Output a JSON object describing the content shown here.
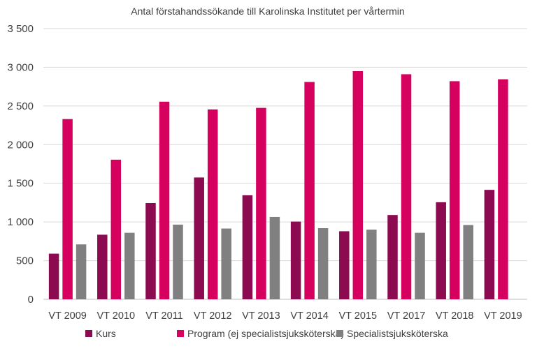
{
  "chart_data": {
    "type": "bar",
    "title": "Antal förstahandssökande till Karolinska Institutet per vårtermin",
    "xlabel": "",
    "ylabel": "",
    "ylim": [
      0,
      3500
    ],
    "yticks": [
      0,
      500,
      1000,
      1500,
      2000,
      2500,
      3000,
      3500
    ],
    "ytick_labels": [
      "0",
      "500",
      "1 000",
      "1 500",
      "2 000",
      "2 500",
      "3 000",
      "3 500"
    ],
    "grid": true,
    "legend_position": "bottom",
    "categories": [
      "VT 2009",
      "VT 2010",
      "VT 2011",
      "VT 2012",
      "VT 2013",
      "VT 2014",
      "VT 2015",
      "VT 2017",
      "VT 2018",
      "VT 2019"
    ],
    "series": [
      {
        "name": "Kurs",
        "color": "#8B0A50",
        "values": [
          590,
          835,
          1245,
          1575,
          1345,
          1005,
          880,
          1090,
          1255,
          1415
        ]
      },
      {
        "name": "Program (ej specialistsjuksköterska)",
        "color": "#D6005F",
        "values": [
          2330,
          1805,
          2555,
          2455,
          2475,
          2810,
          2950,
          2910,
          2820,
          2845
        ]
      },
      {
        "name": "Specialistsjuksköterska",
        "color": "#808080",
        "values": [
          710,
          860,
          965,
          915,
          1065,
          920,
          900,
          860,
          960,
          null
        ]
      }
    ]
  }
}
